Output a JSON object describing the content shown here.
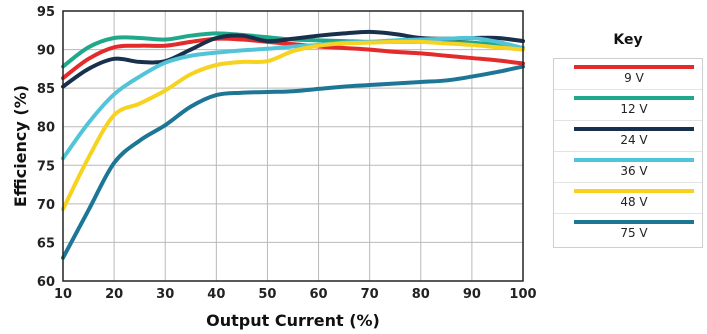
{
  "chart_data": {
    "type": "line",
    "xlabel": "Output Current (%)",
    "ylabel": "Efficiency (%)",
    "xlim": [
      10,
      100
    ],
    "ylim": [
      60,
      95
    ],
    "x_ticks": [
      "10",
      "20",
      "30",
      "40",
      "50",
      "60",
      "70",
      "80",
      "90",
      "100"
    ],
    "y_ticks": [
      "60",
      "65",
      "70",
      "75",
      "80",
      "85",
      "90",
      "95"
    ],
    "grid": true,
    "legend_title": "Key",
    "legend_position": "right",
    "x": [
      10,
      15,
      20,
      25,
      30,
      35,
      40,
      45,
      50,
      55,
      60,
      65,
      70,
      75,
      80,
      85,
      90,
      95,
      100
    ],
    "series": [
      {
        "name": "9 V",
        "color": "#e32b2b",
        "values": [
          86.3,
          88.8,
          90.3,
          90.5,
          90.5,
          91.0,
          91.4,
          91.3,
          91.0,
          90.7,
          90.4,
          90.2,
          90.0,
          89.7,
          89.5,
          89.2,
          88.9,
          88.6,
          88.2
        ]
      },
      {
        "name": "12 V",
        "color": "#1fa98a",
        "values": [
          87.8,
          90.3,
          91.5,
          91.5,
          91.3,
          91.8,
          92.1,
          91.9,
          91.6,
          91.3,
          91.2,
          91.1,
          91.0,
          91.0,
          91.0,
          91.0,
          90.9,
          90.6,
          90.2
        ]
      },
      {
        "name": "24 V",
        "color": "#19304d",
        "values": [
          85.2,
          87.5,
          88.8,
          88.4,
          88.5,
          90.0,
          91.5,
          91.8,
          91.1,
          91.4,
          91.8,
          92.1,
          92.3,
          92.0,
          91.5,
          91.4,
          91.5,
          91.5,
          91.1
        ]
      },
      {
        "name": "36 V",
        "color": "#52c4d8",
        "values": [
          75.9,
          80.5,
          84.2,
          86.5,
          88.3,
          89.2,
          89.6,
          89.9,
          90.1,
          90.4,
          90.6,
          90.9,
          91.0,
          91.2,
          91.3,
          91.4,
          91.5,
          91.0,
          90.2
        ]
      },
      {
        "name": "48 V",
        "color": "#f7d21e",
        "values": [
          69.3,
          76.0,
          81.5,
          83.0,
          84.7,
          86.8,
          88.0,
          88.4,
          88.5,
          89.8,
          90.5,
          90.8,
          90.9,
          91.0,
          91.0,
          90.8,
          90.6,
          90.3,
          90.0
        ]
      },
      {
        "name": "75 V",
        "color": "#1e7696",
        "values": [
          63.0,
          69.2,
          75.3,
          78.2,
          80.2,
          82.6,
          84.1,
          84.4,
          84.5,
          84.6,
          84.9,
          85.2,
          85.4,
          85.6,
          85.8,
          86.0,
          86.5,
          87.1,
          87.8
        ]
      }
    ]
  }
}
